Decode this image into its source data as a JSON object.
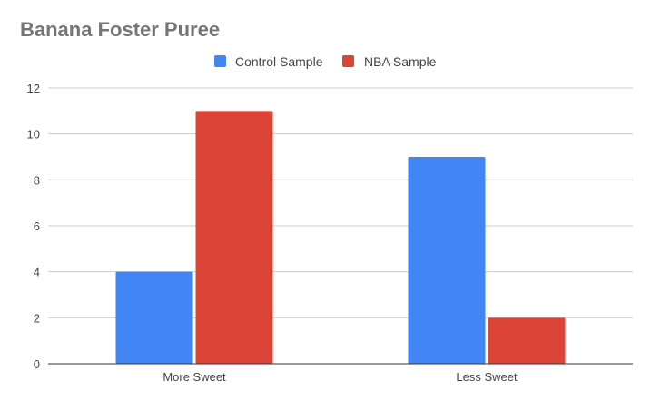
{
  "chart_data": {
    "type": "bar",
    "title": "Banana Foster Puree",
    "categories": [
      "More Sweet",
      "Less Sweet"
    ],
    "series": [
      {
        "name": "Control Sample",
        "values": [
          4,
          9
        ],
        "color": "#4285f4"
      },
      {
        "name": "NBA Sample",
        "values": [
          11,
          2
        ],
        "color": "#db4437"
      }
    ],
    "xlabel": "",
    "ylabel": "",
    "ylim": [
      0,
      12
    ],
    "yticks": [
      0,
      2,
      4,
      6,
      8,
      10,
      12
    ],
    "grid": true,
    "legend_position": "top"
  }
}
